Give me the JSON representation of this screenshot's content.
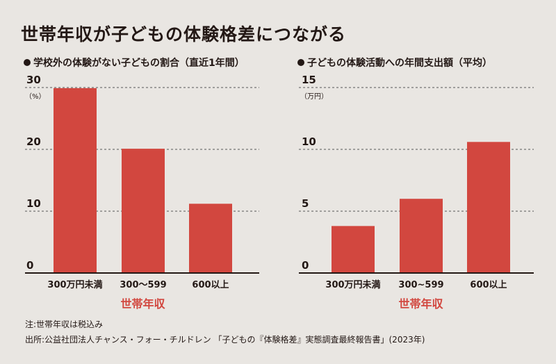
{
  "title": "世帯年収が子どもの体験格差につながる",
  "colors": {
    "bar": "#d2473f",
    "background": "#e9e6e2",
    "accent_text": "#d2473f"
  },
  "chart_data": [
    {
      "type": "bar",
      "title": "学校外の体験がない子どもの割合（直近1年間）",
      "unit": "（%）",
      "categories": [
        "300万円未満",
        "300〜599",
        "600以上"
      ],
      "values": [
        29.9,
        20.1,
        11.2
      ],
      "ylim": [
        0,
        30
      ],
      "yticks": [
        0,
        10,
        20,
        30
      ],
      "xlabel": "世帯年収",
      "grid": true
    },
    {
      "type": "bar",
      "title": "子どもの体験活動への年間支出額（平均）",
      "unit": "（万円）",
      "categories": [
        "300万円未満",
        "300~599",
        "600以上"
      ],
      "values": [
        3.8,
        6.0,
        10.6
      ],
      "ylim": [
        0,
        15
      ],
      "yticks": [
        0,
        5,
        10,
        15
      ],
      "xlabel": "世帯年収",
      "grid": true
    }
  ],
  "notes": {
    "note": "注:世帯年収は税込み",
    "source": "出所:公益社団法人チャンス・フォー・チルドレン 「子どもの『体験格差』実態調査最終報告書」(2023年)"
  }
}
